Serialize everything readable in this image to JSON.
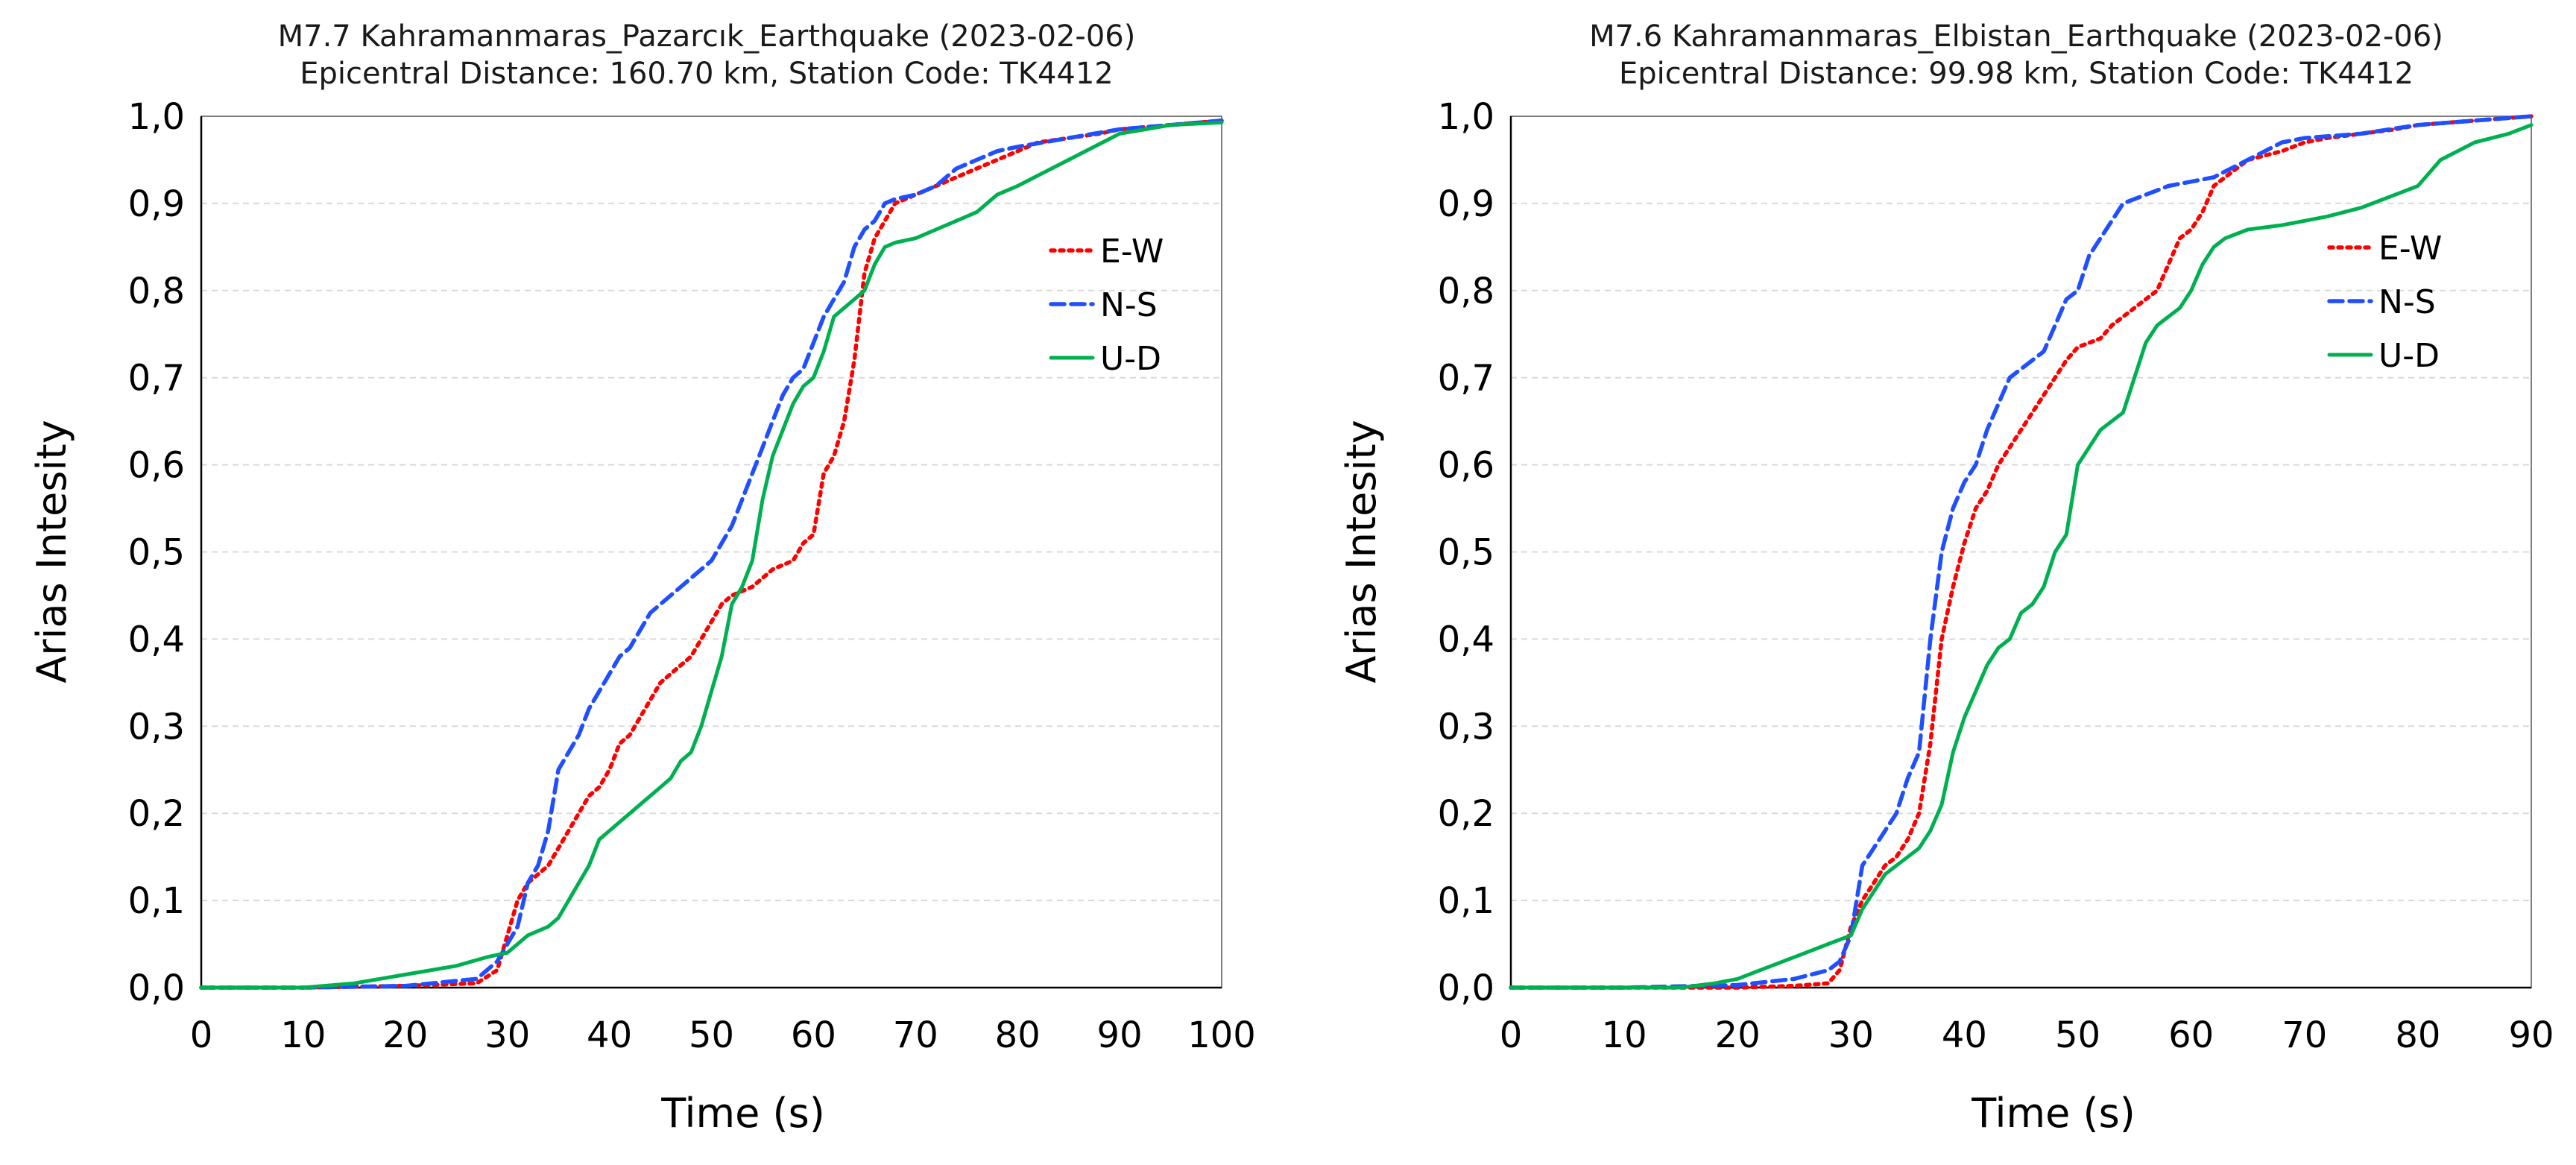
{
  "chart_data": [
    {
      "type": "line",
      "title": "M7.7 Kahramanmaras_Pazarcık_Earthquake (2023-02-06)",
      "subtitle": "Epicentral Distance: 160.70 km, Station Code: TK4412",
      "xlabel": "Time (s)",
      "ylabel": "Arias Intesity",
      "xlim": [
        0,
        100
      ],
      "ylim": [
        0,
        1
      ],
      "xticks": [
        "0",
        "10",
        "20",
        "30",
        "40",
        "50",
        "60",
        "70",
        "80",
        "90",
        "100"
      ],
      "yticks": [
        "0,0",
        "0,1",
        "0,2",
        "0,3",
        "0,4",
        "0,5",
        "0,6",
        "0,7",
        "0,8",
        "0,9",
        "1,0"
      ],
      "grid": true,
      "legend_position": "right",
      "series": [
        {
          "name": "E-W",
          "color": "#ff0000",
          "style": "dotted",
          "x": [
            0,
            10,
            20,
            27,
            29,
            30,
            31,
            32,
            33,
            34,
            35,
            36,
            37,
            38,
            39,
            40,
            41,
            42,
            43,
            44,
            45,
            46,
            47,
            48,
            49,
            50,
            51,
            52,
            53,
            54,
            55,
            56,
            57,
            58,
            59,
            60,
            61,
            62,
            63,
            64,
            65,
            66,
            67,
            68,
            70,
            72,
            74,
            76,
            78,
            80,
            82,
            85,
            88,
            90,
            95,
            100
          ],
          "y": [
            0,
            0,
            0.002,
            0.005,
            0.02,
            0.06,
            0.1,
            0.12,
            0.13,
            0.14,
            0.16,
            0.18,
            0.2,
            0.22,
            0.23,
            0.25,
            0.28,
            0.29,
            0.31,
            0.33,
            0.35,
            0.36,
            0.37,
            0.38,
            0.4,
            0.42,
            0.44,
            0.45,
            0.455,
            0.46,
            0.47,
            0.48,
            0.485,
            0.49,
            0.51,
            0.52,
            0.59,
            0.61,
            0.65,
            0.72,
            0.82,
            0.86,
            0.88,
            0.9,
            0.91,
            0.92,
            0.93,
            0.94,
            0.95,
            0.96,
            0.97,
            0.975,
            0.98,
            0.985,
            0.99,
            0.995
          ]
        },
        {
          "name": "N-S",
          "color": "#1f4fff",
          "style": "dashed",
          "x": [
            0,
            10,
            20,
            27,
            28,
            29,
            30,
            31,
            32,
            33,
            34,
            35,
            36,
            37,
            38,
            39,
            40,
            41,
            42,
            43,
            44,
            45,
            46,
            47,
            48,
            49,
            50,
            51,
            52,
            53,
            54,
            55,
            56,
            57,
            58,
            59,
            60,
            61,
            62,
            63,
            64,
            65,
            66,
            67,
            68,
            70,
            72,
            74,
            76,
            78,
            80,
            85,
            90,
            95,
            100
          ],
          "y": [
            0,
            0,
            0.002,
            0.01,
            0.02,
            0.03,
            0.05,
            0.07,
            0.12,
            0.14,
            0.18,
            0.25,
            0.27,
            0.29,
            0.32,
            0.34,
            0.36,
            0.38,
            0.39,
            0.41,
            0.43,
            0.44,
            0.45,
            0.46,
            0.47,
            0.48,
            0.49,
            0.51,
            0.53,
            0.56,
            0.59,
            0.62,
            0.65,
            0.68,
            0.7,
            0.71,
            0.74,
            0.77,
            0.79,
            0.81,
            0.85,
            0.87,
            0.88,
            0.9,
            0.905,
            0.91,
            0.92,
            0.94,
            0.95,
            0.96,
            0.965,
            0.975,
            0.985,
            0.99,
            0.995
          ]
        },
        {
          "name": "U-D",
          "color": "#00b050",
          "style": "solid",
          "x": [
            0,
            10,
            15,
            20,
            25,
            28,
            30,
            32,
            34,
            35,
            36,
            37,
            38,
            39,
            40,
            42,
            44,
            45,
            46,
            47,
            48,
            49,
            50,
            51,
            52,
            53,
            54,
            55,
            56,
            57,
            58,
            59,
            60,
            61,
            62,
            63,
            64,
            65,
            66,
            67,
            68,
            70,
            72,
            74,
            76,
            78,
            80,
            85,
            90,
            95,
            100
          ],
          "y": [
            0,
            0,
            0.005,
            0.015,
            0.025,
            0.035,
            0.04,
            0.06,
            0.07,
            0.08,
            0.1,
            0.12,
            0.14,
            0.17,
            0.18,
            0.2,
            0.22,
            0.23,
            0.24,
            0.26,
            0.27,
            0.3,
            0.34,
            0.38,
            0.44,
            0.46,
            0.49,
            0.56,
            0.61,
            0.64,
            0.67,
            0.69,
            0.7,
            0.73,
            0.77,
            0.78,
            0.79,
            0.8,
            0.83,
            0.85,
            0.855,
            0.86,
            0.87,
            0.88,
            0.89,
            0.91,
            0.92,
            0.95,
            0.98,
            0.99,
            0.993
          ]
        }
      ]
    },
    {
      "type": "line",
      "title": "M7.6 Kahramanmaras_Elbistan_Earthquake (2023-02-06)",
      "subtitle": "Epicentral Distance: 99.98 km, Station Code: TK4412",
      "xlabel": "Time (s)",
      "ylabel": "Arias Intesity",
      "xlim": [
        0,
        90
      ],
      "ylim": [
        0,
        1
      ],
      "xticks": [
        "0",
        "10",
        "20",
        "30",
        "40",
        "50",
        "60",
        "70",
        "80",
        "90"
      ],
      "yticks": [
        "0,0",
        "0,1",
        "0,2",
        "0,3",
        "0,4",
        "0,5",
        "0,6",
        "0,7",
        "0,8",
        "0,9",
        "1,0"
      ],
      "grid": true,
      "legend_position": "right",
      "series": [
        {
          "name": "E-W",
          "color": "#ff0000",
          "style": "dotted",
          "x": [
            0,
            10,
            20,
            25,
            28,
            29,
            30,
            31,
            32,
            33,
            34,
            35,
            36,
            37,
            38,
            39,
            40,
            41,
            42,
            43,
            44,
            45,
            46,
            47,
            48,
            49,
            50,
            51,
            52,
            53,
            54,
            55,
            56,
            57,
            58,
            59,
            60,
            61,
            62,
            63,
            65,
            68,
            70,
            72,
            75,
            78,
            80,
            85,
            90
          ],
          "y": [
            0,
            0,
            0,
            0.002,
            0.005,
            0.02,
            0.07,
            0.1,
            0.12,
            0.14,
            0.15,
            0.17,
            0.2,
            0.28,
            0.4,
            0.46,
            0.51,
            0.55,
            0.57,
            0.6,
            0.62,
            0.64,
            0.66,
            0.68,
            0.7,
            0.72,
            0.735,
            0.74,
            0.745,
            0.76,
            0.77,
            0.78,
            0.79,
            0.8,
            0.83,
            0.86,
            0.87,
            0.89,
            0.92,
            0.93,
            0.95,
            0.96,
            0.97,
            0.975,
            0.98,
            0.985,
            0.99,
            0.995,
            1.0
          ]
        },
        {
          "name": "N-S",
          "color": "#1f4fff",
          "style": "dashed",
          "x": [
            0,
            10,
            20,
            25,
            28,
            29,
            30,
            31,
            32,
            33,
            34,
            35,
            36,
            37,
            38,
            39,
            40,
            41,
            42,
            43,
            44,
            45,
            46,
            47,
            48,
            49,
            50,
            51,
            52,
            53,
            54,
            55,
            56,
            57,
            58,
            60,
            62,
            65,
            68,
            70,
            75,
            80,
            85,
            90
          ],
          "y": [
            0,
            0,
            0.003,
            0.01,
            0.02,
            0.03,
            0.06,
            0.14,
            0.16,
            0.18,
            0.2,
            0.24,
            0.27,
            0.4,
            0.5,
            0.55,
            0.58,
            0.6,
            0.64,
            0.67,
            0.7,
            0.71,
            0.72,
            0.73,
            0.76,
            0.79,
            0.8,
            0.84,
            0.86,
            0.88,
            0.9,
            0.905,
            0.91,
            0.915,
            0.92,
            0.925,
            0.93,
            0.95,
            0.97,
            0.975,
            0.98,
            0.99,
            0.995,
            1.0
          ]
        },
        {
          "name": "U-D",
          "color": "#00b050",
          "style": "solid",
          "x": [
            0,
            15,
            18,
            20,
            22,
            25,
            28,
            30,
            31,
            32,
            33,
            34,
            35,
            36,
            37,
            38,
            39,
            40,
            41,
            42,
            43,
            44,
            45,
            46,
            47,
            48,
            49,
            50,
            51,
            52,
            53,
            54,
            55,
            56,
            57,
            58,
            59,
            60,
            61,
            62,
            63,
            65,
            68,
            70,
            72,
            75,
            78,
            80,
            82,
            85,
            88,
            90
          ],
          "y": [
            0,
            0,
            0.005,
            0.01,
            0.02,
            0.035,
            0.05,
            0.06,
            0.09,
            0.11,
            0.13,
            0.14,
            0.15,
            0.16,
            0.18,
            0.21,
            0.27,
            0.31,
            0.34,
            0.37,
            0.39,
            0.4,
            0.43,
            0.44,
            0.46,
            0.5,
            0.52,
            0.6,
            0.62,
            0.64,
            0.65,
            0.66,
            0.7,
            0.74,
            0.76,
            0.77,
            0.78,
            0.8,
            0.83,
            0.85,
            0.86,
            0.87,
            0.875,
            0.88,
            0.885,
            0.895,
            0.91,
            0.92,
            0.95,
            0.97,
            0.98,
            0.99
          ]
        }
      ]
    }
  ]
}
